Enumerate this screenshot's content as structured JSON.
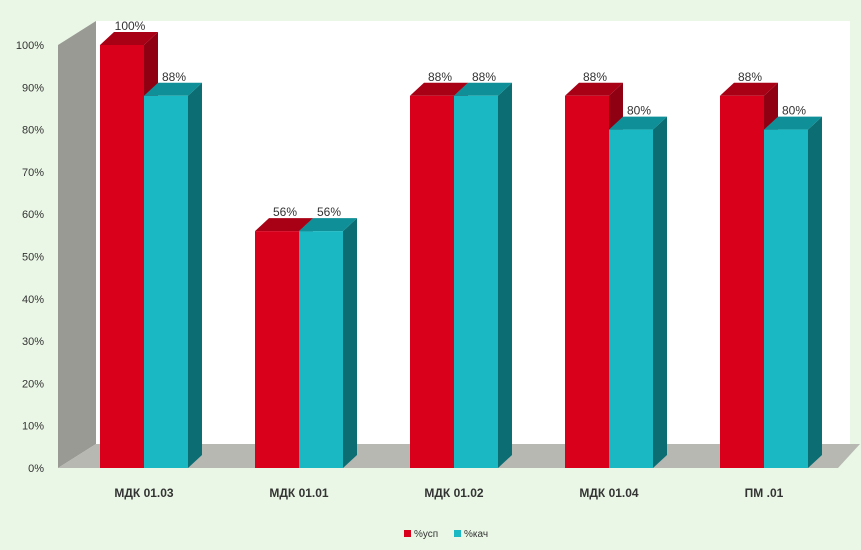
{
  "colors": {
    "background": "#eaf7e6",
    "back_wall": "#9a9a94",
    "back_wall_face": "#ffffff",
    "floor": "#b8b8b2",
    "series_1": "#d9001c",
    "series_1_dark": "#8e0012",
    "series_1_top": "#a80015",
    "series_2": "#19b8c2",
    "series_2_dark": "#0c6d73",
    "series_2_top": "#0f8f97",
    "axis_text": "#333333"
  },
  "chart_data": {
    "type": "bar",
    "style": "3d-clustered-column",
    "categories": [
      "МДК 01.03",
      "МДК 01.01",
      "МДК 01.02",
      "МДК 01.04",
      "ПМ .01"
    ],
    "series": [
      {
        "name": "%усп",
        "values": [
          100,
          56,
          88,
          88,
          88
        ],
        "labels": [
          "100%",
          "56%",
          "88%",
          "88%",
          "88%"
        ]
      },
      {
        "name": "%кач",
        "values": [
          88,
          56,
          88,
          80,
          80
        ],
        "labels": [
          "88%",
          "56%",
          "88%",
          "80%",
          "80%"
        ]
      }
    ],
    "ylim": [
      0,
      100
    ],
    "y_ticks": [
      "0%",
      "10%",
      "20%",
      "30%",
      "40%",
      "50%",
      "60%",
      "70%",
      "80%",
      "90%",
      "100%"
    ],
    "grid": false,
    "legend_position": "bottom"
  }
}
